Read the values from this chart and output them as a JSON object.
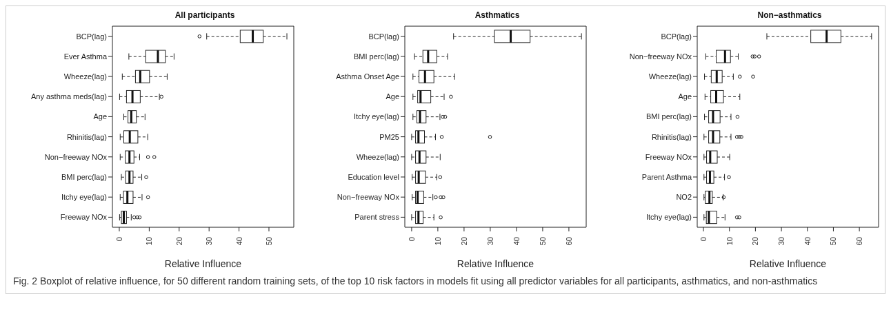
{
  "chart_data": [
    {
      "type": "box",
      "orientation": "horizontal",
      "title": "All participants",
      "xlabel": "Relative Influence",
      "categories": [
        "BCP(lag)",
        "Ever Asthma",
        "Wheeze(lag)",
        "Any asthma meds(lag)",
        "Age",
        "Rhinitis(lag)",
        "Non−freeway NOx",
        "BMI perc(lag)",
        "Itchy eye(lag)",
        "Freeway NOx"
      ],
      "boxes": [
        {
          "low": 29.2,
          "q1": 40.4,
          "median": 44.6,
          "q3": 48.1,
          "high": 56.0,
          "outliers": [
            26.8
          ]
        },
        {
          "low": 3.2,
          "q1": 8.8,
          "median": 12.9,
          "q3": 15.4,
          "high": 18.3
        },
        {
          "low": 1.0,
          "q1": 5.4,
          "median": 7.0,
          "q3": 10.1,
          "high": 16.0
        },
        {
          "low": 0.1,
          "q1": 2.4,
          "median": 4.4,
          "q3": 7.0,
          "high": 13.4,
          "outliers": [
            14.1
          ]
        },
        {
          "low": 1.5,
          "q1": 2.9,
          "median": 4.0,
          "q3": 5.7,
          "high": 8.6
        },
        {
          "low": 0.3,
          "q1": 1.5,
          "median": 3.5,
          "q3": 6.2,
          "high": 9.5
        },
        {
          "low": 0.3,
          "q1": 2.0,
          "median": 3.4,
          "q3": 4.9,
          "high": 6.8,
          "outliers": [
            9.6,
            11.7
          ]
        },
        {
          "low": 0.7,
          "q1": 2.1,
          "median": 3.4,
          "q3": 4.6,
          "high": 7.5,
          "outliers": [
            9.0
          ]
        },
        {
          "low": 0.3,
          "q1": 1.4,
          "median": 2.7,
          "q3": 4.6,
          "high": 7.6,
          "outliers": [
            9.6
          ]
        },
        {
          "low": 0.1,
          "q1": 0.7,
          "median": 1.5,
          "q3": 2.4,
          "high": 4.0,
          "outliers": [
            5.0,
            6.0,
            6.8
          ]
        }
      ],
      "xlim": [
        -2.3,
        58.3
      ],
      "xticks": [
        0,
        10,
        20,
        30,
        40,
        50
      ],
      "grid": false,
      "annotations": [
        "Fig. 2 Boxplot of relative influence, for 50 different random training sets, of the top 10 risk factors in models fit using all predictor variables for all participants, asthmatics, and non-asthmatics"
      ]
    },
    {
      "type": "box",
      "orientation": "horizontal",
      "title": "Asthmatics",
      "xlabel": "Relative Influence",
      "categories": [
        "BCP(lag)",
        "BMI perc(lag)",
        "Asthma Onset Age",
        "Age",
        "Itchy eye(lag)",
        "PM25",
        "Wheeze(lag)",
        "Education level",
        "Non−freeway NOx",
        "Parent stress"
      ],
      "boxes": [
        {
          "low": 16.0,
          "q1": 31.6,
          "median": 37.8,
          "q3": 45.2,
          "high": 64.8
        },
        {
          "low": 1.1,
          "q1": 4.3,
          "median": 6.3,
          "q3": 9.6,
          "high": 13.7
        },
        {
          "low": 0.5,
          "q1": 2.8,
          "median": 5.1,
          "q3": 8.5,
          "high": 16.4
        },
        {
          "low": 0.5,
          "q1": 2.3,
          "median": 3.4,
          "q3": 7.3,
          "high": 12.4,
          "outliers": [
            15.0
          ]
        },
        {
          "low": 0.5,
          "q1": 2.0,
          "median": 3.2,
          "q3": 5.5,
          "high": 10.8,
          "outliers": [
            11.9,
            12.8
          ]
        },
        {
          "low": 0.0,
          "q1": 1.5,
          "median": 2.6,
          "q3": 4.9,
          "high": 9.1,
          "outliers": [
            11.5,
            29.9
          ]
        },
        {
          "low": 0.0,
          "q1": 1.5,
          "median": 3.0,
          "q3": 5.5,
          "high": 10.9
        },
        {
          "low": 0.2,
          "q1": 1.5,
          "median": 2.7,
          "q3": 5.3,
          "high": 9.6,
          "outliers": [
            10.9
          ]
        },
        {
          "low": 0.2,
          "q1": 1.5,
          "median": 2.3,
          "q3": 4.6,
          "high": 8.1,
          "outliers": [
            9.2,
            11.1,
            12.1
          ]
        },
        {
          "low": 0.0,
          "q1": 1.5,
          "median": 2.6,
          "q3": 4.4,
          "high": 8.5,
          "outliers": [
            11.1
          ]
        }
      ],
      "xlim": [
        -2.6,
        66.6
      ],
      "xticks": [
        0,
        10,
        20,
        30,
        40,
        50,
        60
      ],
      "grid": false
    },
    {
      "type": "box",
      "orientation": "horizontal",
      "title": "Non−asthmatics",
      "xlabel": "Relative Influence",
      "categories": [
        "BCP(lag)",
        "Non−freeway NOx",
        "Wheeze(lag)",
        "Age",
        "BMI perc(lag)",
        "Rhinitis(lag)",
        "Freeway NOx",
        "Parent Asthma",
        "NO2",
        "Itchy eye(lag)"
      ],
      "boxes": [
        {
          "low": 24.4,
          "q1": 41.3,
          "median": 47.4,
          "q3": 52.9,
          "high": 64.7
        },
        {
          "low": 0.9,
          "q1": 4.9,
          "median": 8.3,
          "q3": 10.4,
          "high": 13.4,
          "outliers": [
            18.9,
            19.7,
            21.4
          ]
        },
        {
          "low": 0.4,
          "q1": 3.0,
          "median": 5.1,
          "q3": 7.2,
          "high": 11.5,
          "outliers": [
            14.0,
            19.1
          ]
        },
        {
          "low": 0.6,
          "q1": 2.8,
          "median": 4.9,
          "q3": 7.7,
          "high": 14.0
        },
        {
          "low": 0.4,
          "q1": 2.0,
          "median": 3.7,
          "q3": 6.4,
          "high": 10.6,
          "outliers": [
            13.1
          ]
        },
        {
          "low": 0.2,
          "q1": 2.0,
          "median": 3.7,
          "q3": 6.3,
          "high": 10.6,
          "outliers": [
            12.9,
            13.8,
            14.6
          ]
        },
        {
          "low": 0.2,
          "q1": 1.2,
          "median": 2.6,
          "q3": 5.3,
          "high": 10.1
        },
        {
          "low": 0.2,
          "q1": 1.2,
          "median": 2.5,
          "q3": 4.0,
          "high": 8.1,
          "outliers": [
            9.8
          ]
        },
        {
          "low": 0.2,
          "q1": 0.7,
          "median": 2.3,
          "q3": 3.4,
          "high": 7.6,
          "outliers": [
            7.8
          ]
        },
        {
          "low": 0.2,
          "q1": 1.1,
          "median": 2.1,
          "q3": 5.1,
          "high": 8.3,
          "outliers": [
            12.9,
            13.8
          ]
        }
      ],
      "xlim": [
        -2.4,
        67.4
      ],
      "xticks": [
        0,
        10,
        20,
        30,
        40,
        50,
        60
      ],
      "grid": false
    }
  ]
}
